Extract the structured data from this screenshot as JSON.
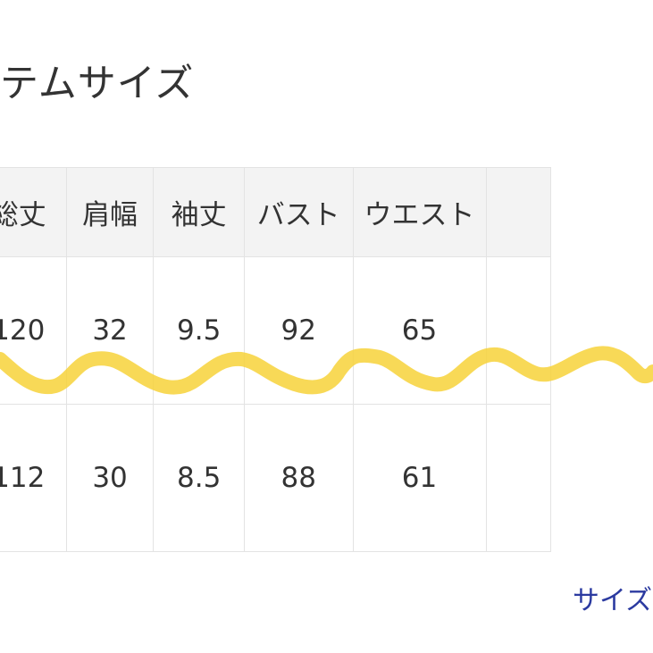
{
  "title": "テムサイズ",
  "table": {
    "headers": [
      "総丈",
      "肩幅",
      "袖丈",
      "バスト",
      "ウエスト",
      ""
    ],
    "rows": [
      {
        "label": "",
        "cells": [
          "120",
          "32",
          "9.5",
          "92",
          "65",
          ""
        ]
      },
      {
        "label": "",
        "cells": [
          "112",
          "30",
          "8.5",
          "88",
          "61",
          ""
        ]
      }
    ]
  },
  "link": {
    "label": "サイズ"
  },
  "colors": {
    "header_bg": "#f3f3f3",
    "border": "#e3e3e3",
    "squiggle": "#f7d23a",
    "link": "#2b3aa0"
  }
}
